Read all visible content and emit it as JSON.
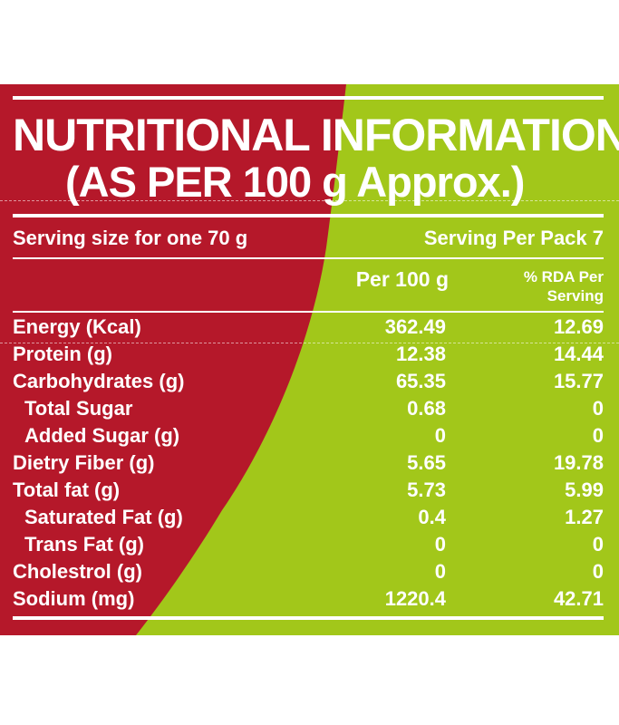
{
  "colors": {
    "red": "#b5182a",
    "green": "#a2c71a",
    "text": "#ffffff"
  },
  "title_line1": "NUTRITIONAL INFORMATION",
  "title_line2": "(AS PER 100 g Approx.)",
  "serving_size": "Serving size for one 70 g",
  "serving_per_pack": "Serving Per Pack 7",
  "columns": {
    "per_100g": "Per 100 g",
    "rda_line1": "% RDA Per",
    "rda_line2": "Serving"
  },
  "rows": [
    {
      "name": "Energy (Kcal)",
      "per100": "362.49",
      "rda": "12.69"
    },
    {
      "name": "Protein (g)",
      "per100": "12.38",
      "rda": "14.44"
    },
    {
      "name": "Carbohydrates (g)",
      "per100": "65.35",
      "rda": "15.77"
    },
    {
      "name": "Total Sugar",
      "per100": "0.68",
      "rda": "0"
    },
    {
      "name": "Added Sugar (g)",
      "per100": "0",
      "rda": "0"
    },
    {
      "name": "Dietry Fiber (g)",
      "per100": "5.65",
      "rda": "19.78"
    },
    {
      "name": "Total fat (g)",
      "per100": "5.73",
      "rda": "5.99"
    },
    {
      "name": "Saturated Fat (g)",
      "per100": "0.4",
      "rda": "1.27"
    },
    {
      "name": "Trans Fat (g)",
      "per100": "0",
      "rda": "0"
    },
    {
      "name": "Cholestrol (g)",
      "per100": "0",
      "rda": "0"
    },
    {
      "name": "Sodium (mg)",
      "per100": "1220.4",
      "rda": "42.71"
    }
  ]
}
